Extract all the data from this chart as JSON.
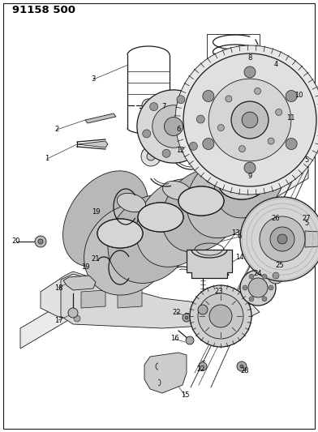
{
  "title": "91158 500",
  "bg_color": "#ffffff",
  "line_color": "#1a1a1a",
  "text_color": "#000000",
  "fig_width": 3.92,
  "fig_height": 5.33,
  "dpi": 100,
  "lw_thin": 0.6,
  "lw_med": 0.9,
  "lw_thick": 1.3,
  "label_fontsize": 6.0,
  "title_fontsize": 9.5
}
